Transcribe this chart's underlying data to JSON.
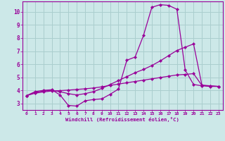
{
  "title": "",
  "xlabel": "Windchill (Refroidissement éolien,°C)",
  "background_color": "#cce8e8",
  "grid_color": "#aacece",
  "line_color": "#990099",
  "xlim": [
    -0.5,
    23.5
  ],
  "ylim": [
    2.5,
    10.8
  ],
  "xticks": [
    0,
    1,
    2,
    3,
    4,
    5,
    6,
    7,
    8,
    9,
    10,
    11,
    12,
    13,
    14,
    15,
    16,
    17,
    18,
    19,
    20,
    21,
    22,
    23
  ],
  "yticks": [
    3,
    4,
    5,
    6,
    7,
    8,
    9,
    10
  ],
  "line1_x": [
    0,
    1,
    2,
    3,
    4,
    5,
    6,
    7,
    8,
    9,
    10,
    11,
    12,
    13,
    14,
    15,
    16,
    17,
    18,
    19,
    20,
    21,
    22,
    23
  ],
  "line1_y": [
    3.6,
    3.9,
    4.0,
    4.05,
    3.65,
    2.85,
    2.8,
    3.2,
    3.3,
    3.35,
    3.7,
    4.1,
    6.3,
    6.55,
    8.2,
    10.35,
    10.55,
    10.5,
    10.2,
    5.55,
    4.45,
    4.35,
    4.3,
    4.3
  ],
  "line2_x": [
    0,
    1,
    2,
    3,
    4,
    5,
    6,
    7,
    8,
    9,
    10,
    11,
    12,
    13,
    14,
    15,
    16,
    17,
    18,
    19,
    20,
    21,
    22,
    23
  ],
  "line2_y": [
    3.6,
    3.85,
    3.95,
    4.0,
    3.9,
    3.75,
    3.65,
    3.75,
    3.9,
    4.15,
    4.45,
    4.75,
    5.05,
    5.35,
    5.6,
    5.9,
    6.25,
    6.65,
    7.05,
    7.3,
    7.55,
    4.4,
    4.35,
    4.3
  ],
  "line3_x": [
    0,
    1,
    2,
    3,
    4,
    5,
    6,
    7,
    8,
    9,
    10,
    11,
    12,
    13,
    14,
    15,
    16,
    17,
    18,
    19,
    20,
    21,
    22,
    23
  ],
  "line3_y": [
    3.6,
    3.78,
    3.88,
    3.95,
    3.98,
    4.02,
    4.07,
    4.12,
    4.18,
    4.27,
    4.38,
    4.48,
    4.58,
    4.68,
    4.78,
    4.88,
    4.98,
    5.08,
    5.18,
    5.22,
    5.28,
    4.38,
    4.33,
    4.3
  ]
}
